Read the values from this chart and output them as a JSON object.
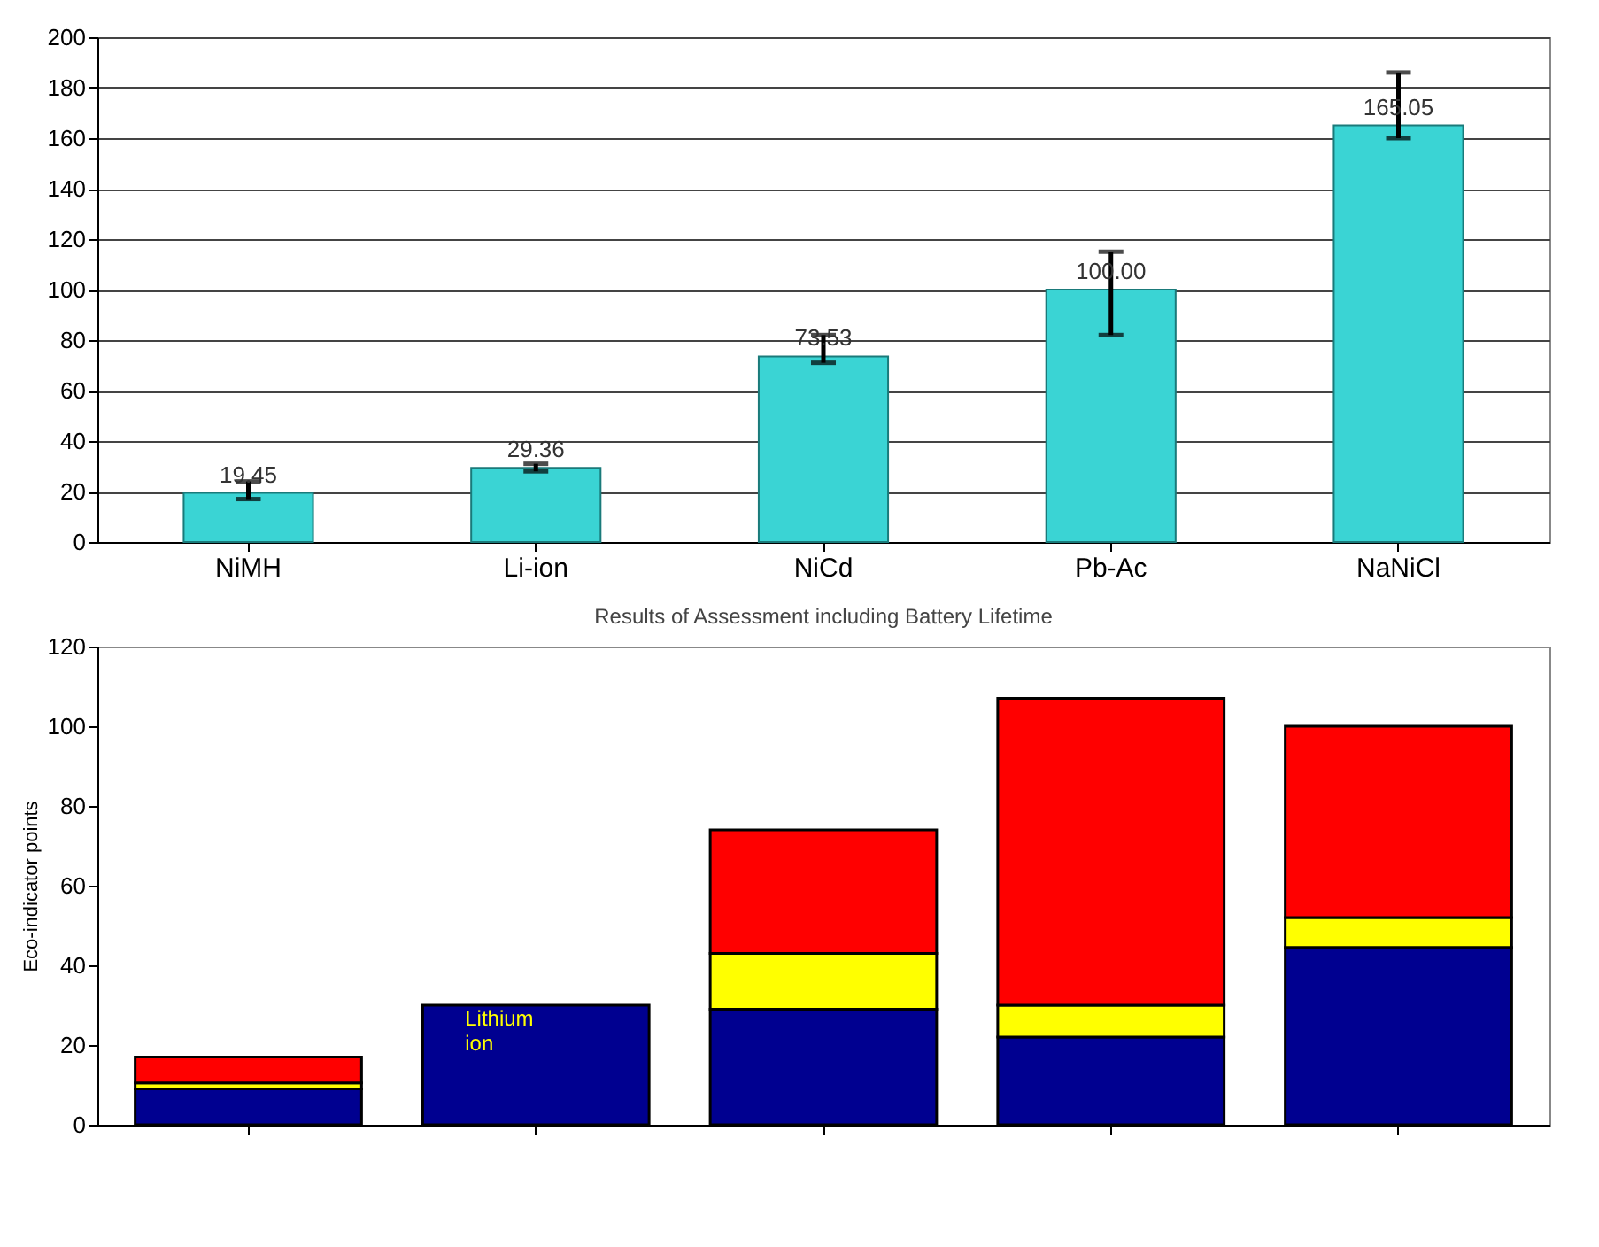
{
  "chart_data": [
    {
      "type": "bar",
      "categories": [
        "NiMH",
        "Li-ion",
        "NiCd",
        "Pb-Ac",
        "NaNiCl"
      ],
      "values": [
        19.45,
        29.36,
        73.53,
        100.0,
        165.05
      ],
      "color": "#3ad4d4",
      "value_labels": [
        "19.45",
        "29.36",
        "73.53",
        "100.00",
        "165.05"
      ],
      "errors": [
        [
          17,
          24
        ],
        [
          28,
          31
        ],
        [
          71,
          82
        ],
        [
          82,
          115
        ],
        [
          160,
          186
        ]
      ],
      "ylim": [
        0,
        200
      ],
      "yticks": [
        0,
        20,
        40,
        60,
        80,
        100,
        120,
        140,
        160,
        180,
        200
      ],
      "grid": "y"
    },
    {
      "type": "bar",
      "stacked": true,
      "title": "Results of Assessment including Battery Lifetime",
      "ylabel": "Eco-indicator points",
      "categories": [
        null,
        null,
        null,
        null,
        null
      ],
      "series": [
        {
          "color": "#000090",
          "values": [
            9,
            30,
            29,
            22,
            44.5
          ]
        },
        {
          "color": "#ffff00",
          "values": [
            1.5,
            null,
            14,
            8,
            7.5
          ]
        },
        {
          "color": "#ff0000",
          "values": [
            6.5,
            null,
            31,
            77,
            48
          ]
        }
      ],
      "ylim": [
        0,
        120
      ],
      "yticks": [
        0,
        20,
        40,
        60,
        80,
        100,
        120
      ],
      "tick_labels": "y",
      "grid": false,
      "annotations": [
        "Lithium ion"
      ]
    }
  ]
}
